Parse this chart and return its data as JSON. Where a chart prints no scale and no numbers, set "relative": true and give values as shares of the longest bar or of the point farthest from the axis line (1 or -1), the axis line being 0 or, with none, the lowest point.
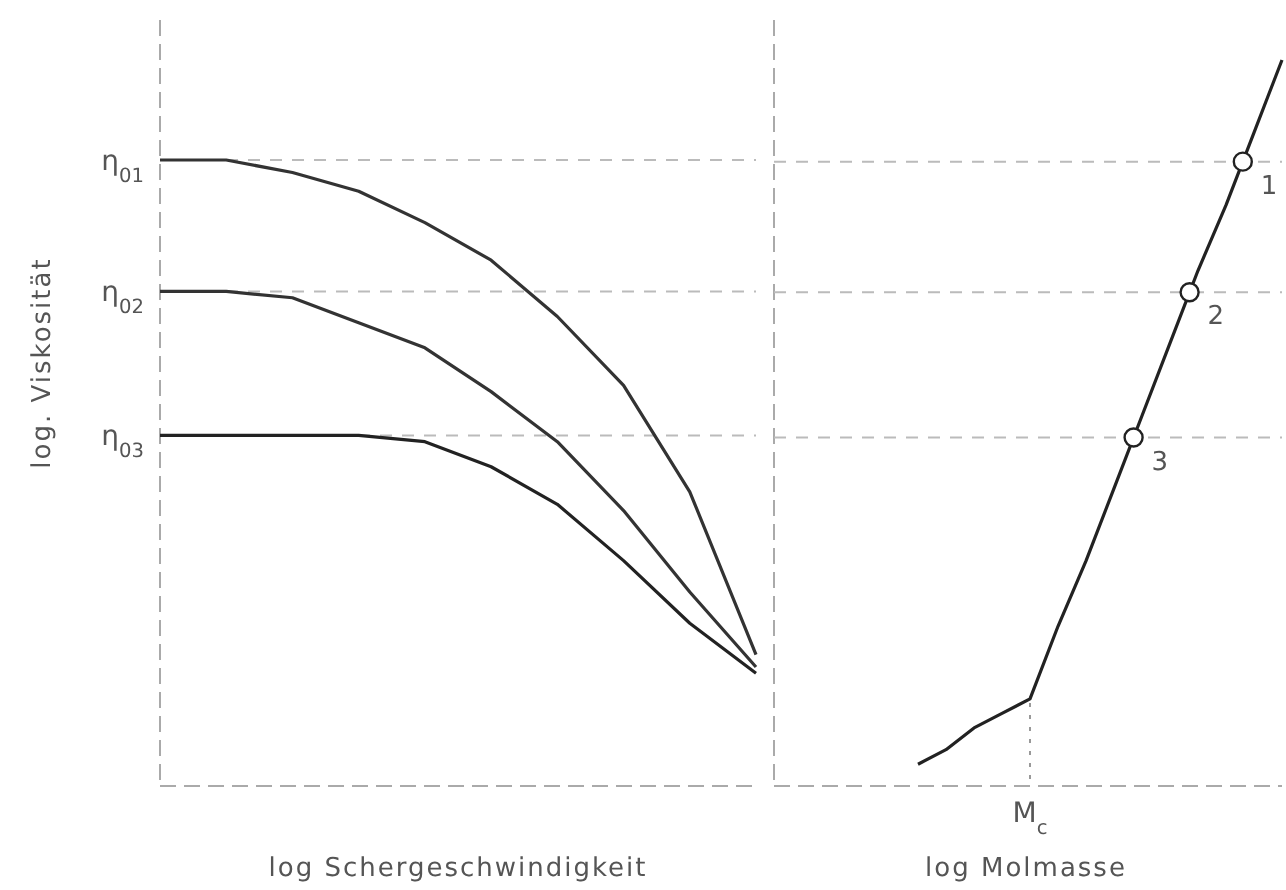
{
  "chart_data": [
    {
      "type": "line",
      "relative": true,
      "xlabel": "log Schergeschwindigkeit",
      "ylabel": "log. Viskosität",
      "line_style": "solid",
      "categories": [
        null,
        null,
        null,
        null,
        null,
        null,
        null,
        null,
        null,
        null
      ],
      "series": [
        {
          "color": "#333333",
          "values": [
            1,
            1,
            0.98,
            0.95,
            0.9,
            0.84,
            0.75,
            0.64,
            0.47,
            0.21
          ]
        },
        {
          "color": "#333333",
          "values": [
            0.79,
            0.79,
            0.78,
            0.74,
            0.7,
            0.63,
            0.55,
            0.44,
            0.31,
            0.19
          ]
        },
        {
          "color": "#222222",
          "values": [
            0.56,
            0.56,
            0.56,
            0.56,
            0.55,
            0.51,
            0.45,
            0.36,
            0.26,
            0.18
          ]
        }
      ],
      "ref_lines": [
        {
          "axis": "y",
          "value": 1,
          "label": "η$_{01}$",
          "line_style": "dashed",
          "color": "#bbbbbb"
        },
        {
          "axis": "y",
          "value": 0.79,
          "label": "η$_{02}$",
          "line_style": "dashed",
          "color": "#bbbbbb"
        },
        {
          "axis": "y",
          "value": 0.56,
          "label": "η$_{03}$",
          "line_style": "dashed",
          "color": "#bbbbbb"
        }
      ]
    },
    {
      "type": "line",
      "relative": true,
      "xlabel": "log Molmasse",
      "line_style": "solid",
      "categories": [
        null,
        null,
        null,
        null,
        null,
        null,
        null,
        null,
        null,
        null,
        null,
        null,
        null,
        null
      ],
      "series": [
        {
          "color": "#222222",
          "values": [
            0.03,
            0.05,
            0.08,
            0.1,
            0.12,
            0.22,
            0.31,
            0.41,
            0.51,
            0.61,
            0.71,
            0.8,
            0.9,
            1
          ]
        }
      ],
      "ref_lines": [
        {
          "axis": "y",
          "value": 0.86,
          "line_style": "dashed",
          "color": "#bbbbbb"
        },
        {
          "axis": "y",
          "value": 0.68,
          "line_style": "dashed",
          "color": "#bbbbbb"
        },
        {
          "axis": "y",
          "value": 0.48,
          "line_style": "dashed",
          "color": "#bbbbbb"
        }
      ],
      "annotations": [
        "1",
        "2",
        "3",
        "M$_{c}$"
      ]
    }
  ]
}
